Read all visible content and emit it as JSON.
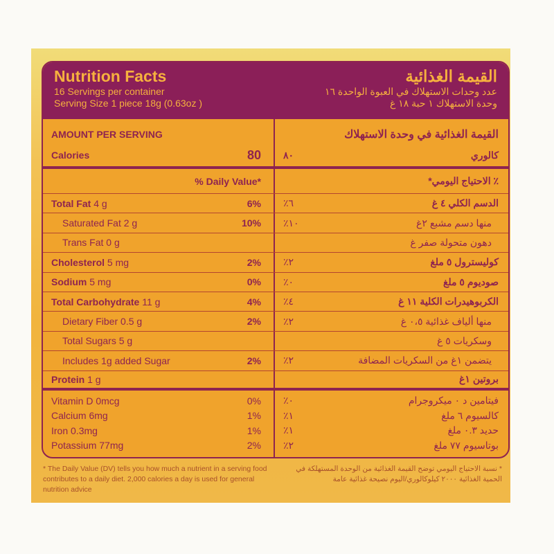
{
  "header": {
    "title_en": "Nutrition Facts",
    "servings_en": "16 Servings per container",
    "serving_size_en": "Serving Size 1 piece 18g (0.63oz )",
    "title_ar": "القيمة الغذائية",
    "servings_ar": "عدد وحدات الاستهلاك في العبوة الواحدة ١٦",
    "serving_size_ar": "وحدة الاستهلاك ١ حبة ١٨ غ"
  },
  "amount": {
    "label_en": "AMOUNT PER SERVING",
    "label_ar": "القيمة الغذائية في وحدة الاستهلاك",
    "calories_en": "Calories",
    "calories_value": "80",
    "calories_value_ar": "٨٠",
    "calories_ar": "كالوري"
  },
  "daily_value": {
    "header_en": "% Daily Value*",
    "header_ar": "٪ الاحتياج اليومي*"
  },
  "nutrients": [
    {
      "name_en": "Total Fat",
      "amount_en": "4 g",
      "dv": "6%",
      "name_ar": "الدسم الكلي ٤ غ",
      "dv_ar": "٦٪",
      "bold": true
    },
    {
      "name_en": "Saturated Fat",
      "amount_en": "2 g",
      "dv": "10%",
      "name_ar": "منها دسم مشبع ٢غ",
      "dv_ar": "١٠٪",
      "bold": false
    },
    {
      "name_en": "Trans Fat",
      "amount_en": "0 g",
      "dv": "",
      "name_ar": "دهون متحولة صفر غ",
      "dv_ar": "",
      "bold": false
    },
    {
      "name_en": "Cholesterol",
      "amount_en": "5 mg",
      "dv": "2%",
      "name_ar": "كوليسترول ٥ ملغ",
      "dv_ar": "٢٪",
      "bold": true
    },
    {
      "name_en": "Sodium",
      "amount_en": "5 mg",
      "dv": "0%",
      "name_ar": "صوديوم ٥ ملغ",
      "dv_ar": "٠٪",
      "bold": true
    },
    {
      "name_en": "Total Carbohydrate",
      "amount_en": "11 g",
      "dv": "4%",
      "name_ar": "الكربوهيدرات الكلية ١١ غ",
      "dv_ar": "٤٪",
      "bold": true
    },
    {
      "name_en": "Dietary Fiber",
      "amount_en": "0.5 g",
      "dv": "2%",
      "name_ar": "منها ألياف غذائية ٠،٥ غ",
      "dv_ar": "٢٪",
      "bold": false
    },
    {
      "name_en": "Total  Sugars",
      "amount_en": "5 g",
      "dv": "",
      "name_ar": "وسكريات ٥ غ",
      "dv_ar": "",
      "bold": false
    },
    {
      "name_en": "Includes 1g added Sugar",
      "amount_en": "",
      "dv": "2%",
      "name_ar": "يتضمن ١غ من السكريات المضافة",
      "dv_ar": "٢٪",
      "bold": false
    },
    {
      "name_en": "Protein",
      "amount_en": "1 g",
      "dv": "",
      "name_ar": "بروتين ١غ",
      "dv_ar": "",
      "bold": true
    }
  ],
  "vitamins": [
    {
      "name_en": "Vitamin D 0mcg",
      "dv": "0%",
      "name_ar": "فيتامين د ٠ ميكروجرام",
      "dv_ar": "٠٪"
    },
    {
      "name_en": "Calcium 6mg",
      "dv": "1%",
      "name_ar": "كالسيوم ٦ ملغ",
      "dv_ar": "١٪"
    },
    {
      "name_en": "Iron 0.3mg",
      "dv": "1%",
      "name_ar": "حديد ٠.٣ ملغ",
      "dv_ar": "١٪"
    },
    {
      "name_en": "Potassium 77mg",
      "dv": "2%",
      "name_ar": "بوتاسيوم ٧٧ ملغ",
      "dv_ar": "٢٪"
    }
  ],
  "footnote": {
    "en": "* The Daily Value (DV) tells you how much a nutrient in a serving food contributes to a daily diet. 2,000 calories a day is used for general nutrition advice",
    "ar": "* نسبة الاحتياج اليومي توضح القيمة الغذائية من الوحدة المستهلكة في الحمية الغذائية ٢٠٠٠ كيلوكالوري/اليوم نصيحة غذائية عامة"
  },
  "colors": {
    "purple": "#8b1f58",
    "orange": "#f0a32c",
    "header_text": "#f6b13e"
  }
}
